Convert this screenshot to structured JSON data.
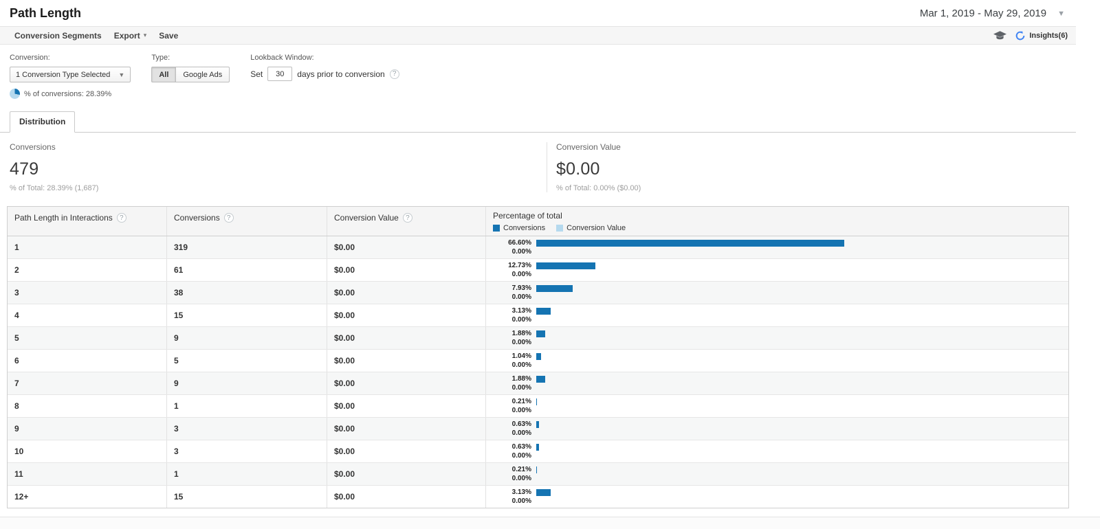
{
  "header": {
    "title": "Path Length",
    "date_range": "Mar 1, 2019 - May 29, 2019"
  },
  "toolbar": {
    "conversion_segments": "Conversion Segments",
    "export": "Export",
    "save": "Save",
    "insights_label": "Insights(6)"
  },
  "filters": {
    "conversion": {
      "label": "Conversion:",
      "selected": "1 Conversion Type Selected",
      "share_note": "% of conversions: 28.39%",
      "share_pct": 28.39
    },
    "type": {
      "label": "Type:",
      "option_all": "All",
      "option_google_ads": "Google Ads",
      "selected": "All"
    },
    "lookback": {
      "label": "Lookback Window:",
      "prefix": "Set",
      "days": "30",
      "suffix": "days prior to conversion"
    }
  },
  "tabs": [
    {
      "label": "Distribution",
      "active": true
    }
  ],
  "summary": {
    "conversions": {
      "label": "Conversions",
      "value": "479",
      "pct_of_total": "% of Total: 28.39% (1,687)"
    },
    "conversion_value": {
      "label": "Conversion Value",
      "value": "$0.00",
      "pct_of_total": "% of Total: 0.00% ($0.00)"
    }
  },
  "table": {
    "columns": {
      "path": "Path Length in Interactions",
      "conversions": "Conversions",
      "value": "Conversion Value",
      "percentage": "Percentage of total"
    },
    "legend": [
      {
        "label": "Conversions",
        "color": "#1574b2"
      },
      {
        "label": "Conversion Value",
        "color": "#b5d9ee"
      }
    ],
    "rows": [
      {
        "path": "1",
        "conversions": "319",
        "value": "$0.00",
        "pct_conversions": "66.60%",
        "pct_value": "0.00%"
      },
      {
        "path": "2",
        "conversions": "61",
        "value": "$0.00",
        "pct_conversions": "12.73%",
        "pct_value": "0.00%"
      },
      {
        "path": "3",
        "conversions": "38",
        "value": "$0.00",
        "pct_conversions": "7.93%",
        "pct_value": "0.00%"
      },
      {
        "path": "4",
        "conversions": "15",
        "value": "$0.00",
        "pct_conversions": "3.13%",
        "pct_value": "0.00%"
      },
      {
        "path": "5",
        "conversions": "9",
        "value": "$0.00",
        "pct_conversions": "1.88%",
        "pct_value": "0.00%"
      },
      {
        "path": "6",
        "conversions": "5",
        "value": "$0.00",
        "pct_conversions": "1.04%",
        "pct_value": "0.00%"
      },
      {
        "path": "7",
        "conversions": "9",
        "value": "$0.00",
        "pct_conversions": "1.88%",
        "pct_value": "0.00%"
      },
      {
        "path": "8",
        "conversions": "1",
        "value": "$0.00",
        "pct_conversions": "0.21%",
        "pct_value": "0.00%"
      },
      {
        "path": "9",
        "conversions": "3",
        "value": "$0.00",
        "pct_conversions": "0.63%",
        "pct_value": "0.00%"
      },
      {
        "path": "10",
        "conversions": "3",
        "value": "$0.00",
        "pct_conversions": "0.63%",
        "pct_value": "0.00%"
      },
      {
        "path": "11",
        "conversions": "1",
        "value": "$0.00",
        "pct_conversions": "0.21%",
        "pct_value": "0.00%"
      },
      {
        "path": "12+",
        "conversions": "15",
        "value": "$0.00",
        "pct_conversions": "3.13%",
        "pct_value": "0.00%"
      }
    ]
  }
}
